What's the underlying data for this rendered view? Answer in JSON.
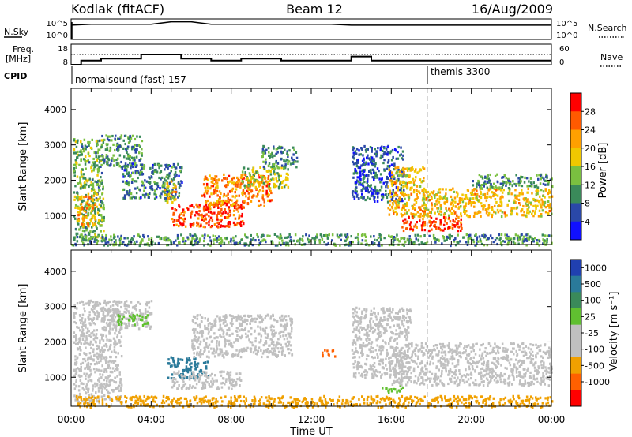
{
  "header": {
    "station": "Kodiak (fitACF)",
    "beam": "Beam 12",
    "date": "16/Aug/2009"
  },
  "strip1": {
    "left_label": "N.Sky",
    "right_label": "N.Search",
    "left_ticks": [
      "10^5",
      "10^0"
    ],
    "right_ticks": [
      "10^5",
      "10^0"
    ]
  },
  "strip2": {
    "left_label_1": "Freq.",
    "left_label_2": "[MHz]",
    "right_label": "Nave",
    "left_ticks": [
      "18",
      "8"
    ],
    "right_ticks": [
      "60",
      "0"
    ]
  },
  "cpid": {
    "label": "CPID",
    "mode_1": "normalsound (fast) 157",
    "mode_2": "themis 3300"
  },
  "time_axis": {
    "label": "Time UT",
    "ticks": [
      "00:00",
      "04:00",
      "08:00",
      "12:00",
      "16:00",
      "20:00",
      "00:00"
    ]
  },
  "power_panel": {
    "ylabel": "Slant Range [km]",
    "yticks": [
      "4000",
      "3000",
      "2000",
      "1000"
    ],
    "cbar_label": "Power [dB]",
    "cbar_ticks": [
      "28",
      "24",
      "20",
      "16",
      "12",
      "8",
      "4"
    ],
    "cbar_colors": [
      "#ff0000",
      "#ff5a00",
      "#ffa000",
      "#f0c800",
      "#7ac040",
      "#3a8a5a",
      "#2a48a8",
      "#1010ff"
    ]
  },
  "velocity_panel": {
    "ylabel": "Slant Range [km]",
    "yticks": [
      "4000",
      "3000",
      "2000",
      "1000"
    ],
    "cbar_label": "Velocity [m s⁻¹]",
    "cbar_ticks": [
      "1000",
      "500",
      "100",
      "25",
      "-25",
      "-100",
      "-500",
      "-1000"
    ],
    "cbar_colors": [
      "#2040b0",
      "#2a7a9a",
      "#3a8a5a",
      "#60c030",
      "#c0c0c0",
      "#c0c0c0",
      "#f0a000",
      "#ff6000",
      "#ff0000"
    ]
  },
  "chart_data": [
    {
      "type": "line",
      "title": "N.Sky / N.Search",
      "x": [
        0,
        1,
        2,
        3,
        4,
        5,
        6,
        7,
        8,
        9,
        10,
        11,
        12,
        13,
        14,
        15,
        16,
        17,
        18,
        19,
        20,
        21,
        22,
        23,
        24
      ],
      "series": [
        {
          "name": "N.Sky",
          "values": [
            3000.0,
            5000.0,
            5000.0,
            5000.0,
            5000.0,
            20000.0,
            20000.0,
            5000.0,
            5000.0,
            5000.0,
            5000.0,
            5000.0,
            5000.0,
            5000.0,
            3000.0,
            3000.0,
            3000.0,
            3000.0,
            3000.0,
            3000.0,
            3000.0,
            3000.0,
            3000.0,
            3000.0,
            3000.0
          ]
        }
      ],
      "yscale": "log",
      "ylim": [
        1,
        100000
      ]
    },
    {
      "type": "line",
      "title": "Freq. / Nave",
      "x": [
        0,
        0.5,
        1.5,
        3.5,
        5.5,
        7,
        8.5,
        10.5,
        13,
        14,
        15,
        17,
        24
      ],
      "series": [
        {
          "name": "Freq.",
          "values": [
            8,
            10,
            11,
            13,
            11,
            10,
            11,
            10,
            10,
            12,
            10,
            10,
            10
          ]
        },
        {
          "name": "Nave",
          "values": [
            30,
            30,
            30,
            30,
            30,
            30,
            30,
            30,
            30,
            30,
            30,
            30,
            30
          ]
        }
      ],
      "xlim": [
        0,
        24
      ],
      "ylim": [
        8,
        18
      ]
    },
    {
      "type": "heatmap",
      "title": "Power [dB]",
      "xlabel": "Time UT",
      "ylabel": "Slant Range [km]",
      "xlim": [
        0,
        24
      ],
      "ylim": [
        180,
        4600
      ],
      "zlim": [
        0,
        30
      ],
      "cpid_changes": [
        {
          "time": 0,
          "mode": "normalsound (fast) 157"
        },
        {
          "time": 18.05,
          "mode": "themis 3300"
        }
      ],
      "regions": [
        {
          "t": [
            0.1,
            1.6
          ],
          "r": [
            300,
            3200
          ],
          "value": 12
        },
        {
          "t": [
            0.3,
            1.2
          ],
          "r": [
            700,
            1600
          ],
          "value": 20
        },
        {
          "t": [
            1.5,
            3.5
          ],
          "r": [
            2400,
            3300
          ],
          "value": 10
        },
        {
          "t": [
            2.5,
            5.5
          ],
          "r": [
            1500,
            2500
          ],
          "value": 8
        },
        {
          "t": [
            4.6,
            5.2
          ],
          "r": [
            1400,
            2000
          ],
          "value": 18
        },
        {
          "t": [
            5.0,
            8.6
          ],
          "r": [
            700,
            1400
          ],
          "value": 26
        },
        {
          "t": [
            6.5,
            10.0
          ],
          "r": [
            1300,
            2200
          ],
          "value": 22
        },
        {
          "t": [
            8.5,
            10.8
          ],
          "r": [
            1800,
            2400
          ],
          "value": 14
        },
        {
          "t": [
            9.5,
            11.3
          ],
          "r": [
            2400,
            3000
          ],
          "value": 10
        },
        {
          "t": [
            0.0,
            24.0
          ],
          "r": [
            180,
            500
          ],
          "value": 10
        },
        {
          "t": [
            14.0,
            16.6
          ],
          "r": [
            1400,
            3000
          ],
          "value": 6
        },
        {
          "t": [
            15.8,
            17.6
          ],
          "r": [
            1000,
            2400
          ],
          "value": 18
        },
        {
          "t": [
            16.5,
            19.5
          ],
          "r": [
            600,
            1000
          ],
          "value": 26
        },
        {
          "t": [
            17.5,
            24.0
          ],
          "r": [
            1000,
            1800
          ],
          "value": 18
        },
        {
          "t": [
            20.0,
            24.0
          ],
          "r": [
            1800,
            2200
          ],
          "value": 10
        }
      ]
    },
    {
      "type": "heatmap",
      "title": "Velocity [m s⁻¹]",
      "xlabel": "Time UT",
      "ylabel": "Slant Range [km]",
      "xlim": [
        0,
        24
      ],
      "ylim": [
        180,
        4600
      ],
      "zlim": [
        -1000,
        1000
      ],
      "regions": [
        {
          "t": [
            0.1,
            2.5
          ],
          "r": [
            300,
            3200
          ],
          "value": 0
        },
        {
          "t": [
            1.5,
            4.0
          ],
          "r": [
            2400,
            3200
          ],
          "value": 0
        },
        {
          "t": [
            2.3,
            3.8
          ],
          "r": [
            2500,
            2800
          ],
          "value": 80
        },
        {
          "t": [
            4.8,
            6.8
          ],
          "r": [
            1000,
            1600
          ],
          "value": 200
        },
        {
          "t": [
            5.0,
            8.5
          ],
          "r": [
            700,
            1200
          ],
          "value": 0
        },
        {
          "t": [
            6.0,
            11.0
          ],
          "r": [
            1600,
            2800
          ],
          "value": 0
        },
        {
          "t": [
            0.0,
            24.0
          ],
          "r": [
            180,
            500
          ],
          "value": -60
        },
        {
          "t": [
            14.0,
            17.0
          ],
          "r": [
            1000,
            3000
          ],
          "value": 0
        },
        {
          "t": [
            15.5,
            16.6
          ],
          "r": [
            600,
            800
          ],
          "value": 80
        },
        {
          "t": [
            16.0,
            24.0
          ],
          "r": [
            800,
            2000
          ],
          "value": 0
        },
        {
          "t": [
            12.5,
            13.2
          ],
          "r": [
            1600,
            1800
          ],
          "value": -200
        }
      ]
    }
  ]
}
